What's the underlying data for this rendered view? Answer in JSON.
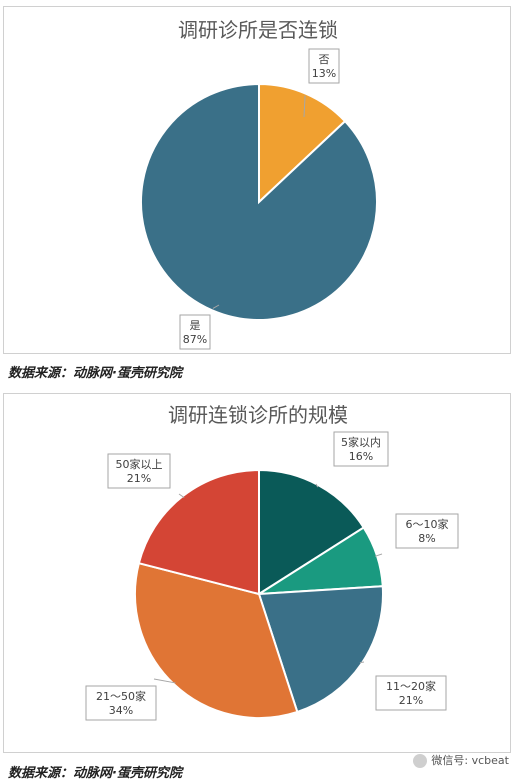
{
  "chart_data": [
    {
      "type": "pie",
      "title": "调研诊所是否连锁",
      "slices": [
        {
          "label": "否",
          "value": 13,
          "display": "13%",
          "color": "#f0a030"
        },
        {
          "label": "是",
          "value": 87,
          "display": "87%",
          "color": "#3a7088"
        }
      ]
    },
    {
      "type": "pie",
      "title": "调研连锁诊所的规模",
      "slices": [
        {
          "label": "5家以内",
          "value": 16,
          "display": "16%",
          "color": "#0a5a58"
        },
        {
          "label": "6～10家",
          "value": 8,
          "display": "8%",
          "color": "#1a9a80"
        },
        {
          "label": "11～20家",
          "value": 21,
          "display": "21%",
          "color": "#3a7088"
        },
        {
          "label": "21～50家",
          "value": 34,
          "display": "34%",
          "color": "#e07535"
        },
        {
          "label": "50家以上",
          "value": 21,
          "display": "21%",
          "color": "#d44535"
        }
      ]
    }
  ],
  "sources": [
    "数据来源：动脉网·蛋壳研究院",
    "数据来源：动脉网·蛋壳研究院"
  ],
  "watermark": "微信号: vcbeat"
}
